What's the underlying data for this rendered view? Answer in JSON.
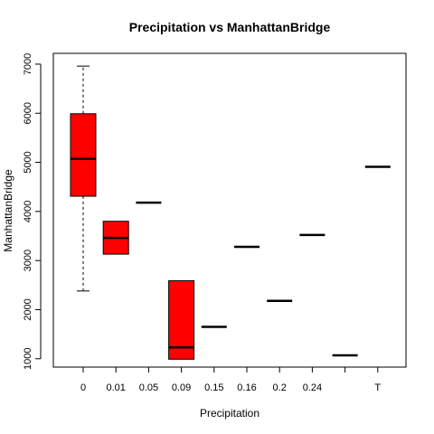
{
  "chart_data": {
    "type": "box",
    "title": "Precipitation vs ManhattanBridge",
    "xlabel": "Precipitation",
    "ylabel": "ManhattanBridge",
    "ylim": [
      830,
      7220
    ],
    "y_ticks": [
      1000,
      2000,
      3000,
      4000,
      5000,
      6000,
      7000
    ],
    "categories": [
      "0",
      "0.01",
      "0.05",
      "0.09",
      "0.15",
      "0.16",
      "0.2",
      "0.24",
      "",
      "T"
    ],
    "boxes": [
      {
        "category": "0",
        "whisker_low": 2380,
        "q1": 4310,
        "median": 5070,
        "q3": 5990,
        "whisker_high": 6960
      },
      {
        "category": "0.01",
        "whisker_low": 3130,
        "q1": 3130,
        "median": 3460,
        "q3": 3800,
        "whisker_high": 3800
      },
      {
        "category": "0.05",
        "whisker_low": 4180,
        "q1": 4180,
        "median": 4180,
        "q3": 4180,
        "whisker_high": 4180
      },
      {
        "category": "0.09",
        "whisker_low": 990,
        "q1": 990,
        "median": 1230,
        "q3": 2590,
        "whisker_high": 2590
      },
      {
        "category": "0.15",
        "whisker_low": 1650,
        "q1": 1650,
        "median": 1650,
        "q3": 1650,
        "whisker_high": 1650
      },
      {
        "category": "0.16",
        "whisker_low": 3280,
        "q1": 3280,
        "median": 3280,
        "q3": 3280,
        "whisker_high": 3280
      },
      {
        "category": "0.2",
        "whisker_low": 2180,
        "q1": 2180,
        "median": 2180,
        "q3": 2180,
        "whisker_high": 2180
      },
      {
        "category": "0.24",
        "whisker_low": 3520,
        "q1": 3520,
        "median": 3520,
        "q3": 3520,
        "whisker_high": 3520
      },
      {
        "category": "",
        "whisker_low": 1070,
        "q1": 1070,
        "median": 1070,
        "q3": 1070,
        "whisker_high": 1070
      },
      {
        "category": "T",
        "whisker_low": 4910,
        "q1": 4910,
        "median": 4910,
        "q3": 4910,
        "whisker_high": 4910
      }
    ],
    "box_fill": "#ff0000",
    "grid": false,
    "legend": "none"
  }
}
